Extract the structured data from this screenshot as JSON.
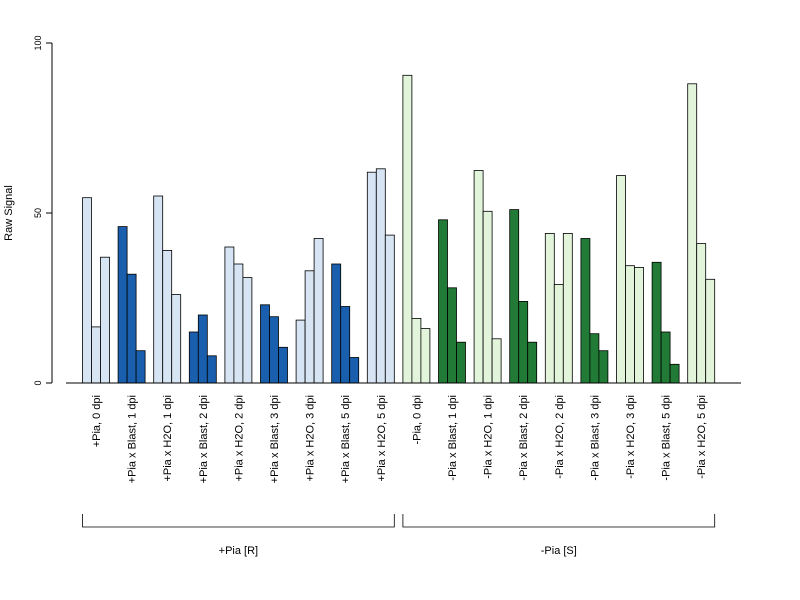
{
  "chart_data": {
    "type": "bar",
    "ylabel": "Raw Signal",
    "ylim": [
      0,
      100
    ],
    "yticks": [
      0,
      50,
      100
    ],
    "grid": false,
    "bars_per_group": 3,
    "categories": [
      "+Pia, 0 dpi",
      "+Pia x Blast, 1 dpi",
      "+Pia x H2O, 1 dpi",
      "+Pia x Blast, 2 dpi",
      "+Pia x H2O, 2 dpi",
      "+Pia x Blast, 3 dpi",
      "+Pia x H2O, 3 dpi",
      "+Pia x Blast, 5 dpi",
      "+Pia x H2O, 5 dpi",
      "-Pia, 0 dpi",
      "-Pia x Blast, 1 dpi",
      "-Pia x H2O, 1 dpi",
      "-Pia x Blast, 2 dpi",
      "-Pia x H2O, 2 dpi",
      "-Pia x Blast, 3 dpi",
      "-Pia x H2O, 3 dpi",
      "-Pia x Blast, 5 dpi",
      "-Pia x H2O, 5 dpi"
    ],
    "values": [
      [
        54.5,
        16.5,
        37
      ],
      [
        46,
        32,
        9.5
      ],
      [
        55,
        39,
        26
      ],
      [
        15,
        20,
        8
      ],
      [
        40,
        35,
        31
      ],
      [
        23,
        19.5,
        10.5
      ],
      [
        18.5,
        33,
        42.5
      ],
      [
        35,
        22.5,
        7.5
      ],
      [
        62,
        63,
        43.5
      ],
      [
        90.5,
        19,
        16
      ],
      [
        48,
        28,
        12
      ],
      [
        62.5,
        50.5,
        13
      ],
      [
        51,
        24,
        12
      ],
      [
        44,
        29,
        44
      ],
      [
        42.5,
        14.5,
        9.5
      ],
      [
        61,
        34.5,
        34
      ],
      [
        35.5,
        15,
        5.5
      ],
      [
        88,
        41,
        30.5
      ]
    ],
    "colors": [
      "#D6E4F4",
      "#1A5FAD",
      "#D6E4F4",
      "#1A5FAD",
      "#D6E4F4",
      "#1A5FAD",
      "#D6E4F4",
      "#1A5FAD",
      "#D6E4F4",
      "#E2F5DB",
      "#217A35",
      "#E2F5DB",
      "#217A35",
      "#E2F5DB",
      "#217A35",
      "#E2F5DB",
      "#217A35",
      "#E2F5DB"
    ],
    "groups": [
      {
        "label": "+Pia [R]",
        "from": 0,
        "to": 8
      },
      {
        "label": "-Pia [S]",
        "from": 9,
        "to": 17
      }
    ]
  }
}
